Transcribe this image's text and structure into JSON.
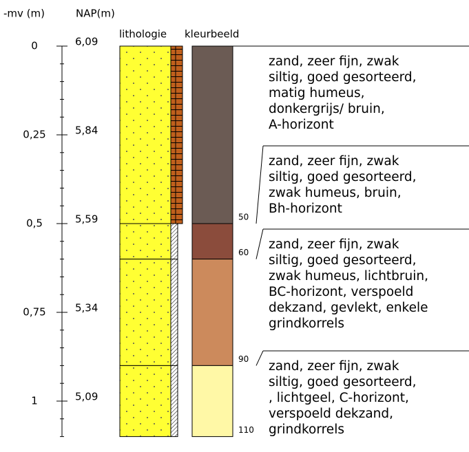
{
  "axis_labels": {
    "depth": "-mv (m)",
    "nap": "NAP(m)"
  },
  "column_headers": {
    "lithology": "lithologie",
    "color": "kleurbeeld"
  },
  "depth_ticks": [
    {
      "depth": "0",
      "nap": "6,09"
    },
    {
      "depth": "0,25",
      "nap": "5,84"
    },
    {
      "depth": "0,5",
      "nap": "5,59"
    },
    {
      "depth": "0,75",
      "nap": "5,34"
    },
    {
      "depth": "1",
      "nap": "5,09"
    }
  ],
  "layers": [
    {
      "bottom": "50",
      "color": "#6b5b54",
      "lines": [
        "zand, zeer fijn, zwak",
        "siltig, goed gesorteerd,",
        "matig humeus,",
        "donkergrijs/ bruin,",
        "A-horizont"
      ]
    },
    {
      "bottom": "60",
      "color": "#8b4c3c",
      "lines": [
        "zand, zeer fijn, zwak",
        "siltig, goed gesorteerd,",
        "zwak humeus, bruin,",
        "Bh-horizont"
      ]
    },
    {
      "bottom": "90",
      "color": "#cc8a5c",
      "lines": [
        "zand, zeer fijn, zwak",
        "siltig, goed gesorteerd,",
        "zwak humeus, lichtbruin,",
        "BC-horizont, verspoeld",
        "dekzand, gevlekt, enkele",
        "grindkorrels"
      ]
    },
    {
      "bottom": "110",
      "color": "#fff8a6",
      "lines": [
        "zand, zeer fijn, zwak",
        "siltig, goed gesorteerd,",
        ", lichtgeel, C-horizont,",
        "verspoeld dekzand,",
        "grindkorrels"
      ]
    }
  ]
}
